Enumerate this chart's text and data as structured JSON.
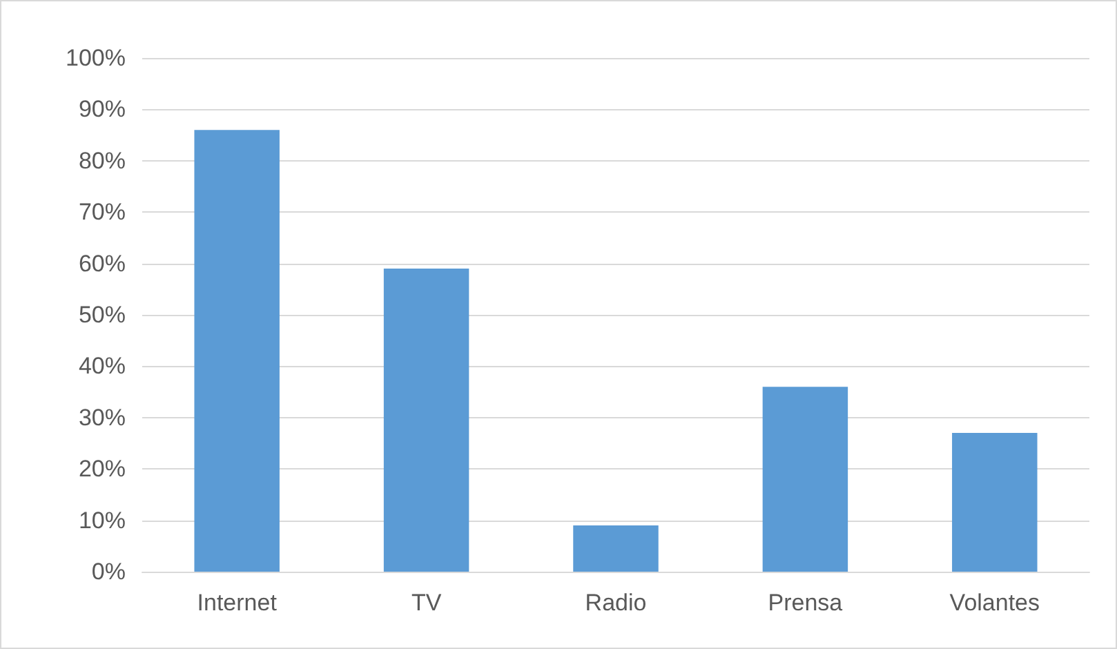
{
  "chart_data": {
    "type": "bar",
    "categories": [
      "Internet",
      "TV",
      "Radio",
      "Prensa",
      "Volantes"
    ],
    "values": [
      86,
      59,
      9,
      36,
      27
    ],
    "color": "#5b9bd5",
    "ylim": [
      0,
      100
    ],
    "yticks": [
      {
        "value": 0,
        "label": "0%"
      },
      {
        "value": 10,
        "label": "10%"
      },
      {
        "value": 20,
        "label": "20%"
      },
      {
        "value": 30,
        "label": "30%"
      },
      {
        "value": 40,
        "label": "40%"
      },
      {
        "value": 50,
        "label": "50%"
      },
      {
        "value": 60,
        "label": "60%"
      },
      {
        "value": 70,
        "label": "70%"
      },
      {
        "value": 80,
        "label": "80%"
      },
      {
        "value": 90,
        "label": "90%"
      },
      {
        "value": 100,
        "label": "100%"
      }
    ],
    "grid": "y"
  }
}
